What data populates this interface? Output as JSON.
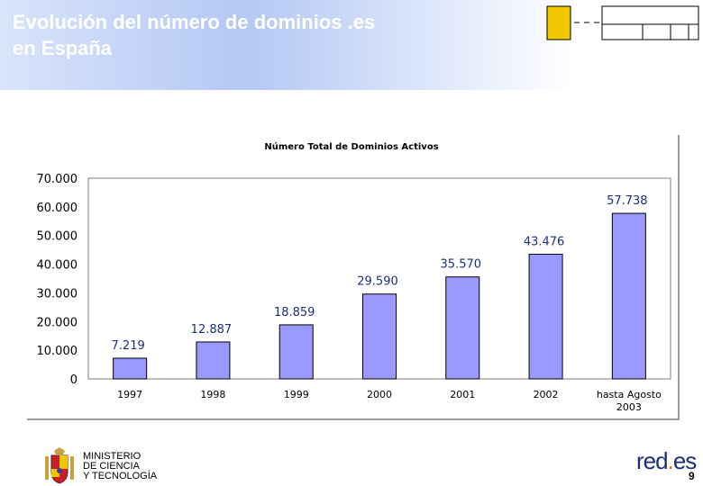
{
  "slide": {
    "title_line1": "Evolución del número de dominios .es",
    "title_line2": "en España",
    "page_number": "9"
  },
  "footer": {
    "ministry_lines": [
      "MINISTERIO",
      "DE CIENCIA",
      "Y TECNOLOGÍA"
    ],
    "brand_text": "red",
    "brand_accent": "es"
  },
  "chart_data": {
    "type": "bar",
    "title": "Número Total de Dominios Activos",
    "categories": [
      "1997",
      "1998",
      "1999",
      "2000",
      "2001",
      "2002",
      "hasta Agosto 2003"
    ],
    "category_lines": [
      [
        "1997"
      ],
      [
        "1998"
      ],
      [
        "1999"
      ],
      [
        "2000"
      ],
      [
        "2001"
      ],
      [
        "2002"
      ],
      [
        "hasta Agosto",
        "2003"
      ]
    ],
    "values": [
      7219,
      12887,
      18859,
      29590,
      35570,
      43476,
      57738
    ],
    "value_labels": [
      "7.219",
      "12.887",
      "18.859",
      "29.590",
      "35.570",
      "43.476",
      "57.738"
    ],
    "yticks": [
      0,
      10000,
      20000,
      30000,
      40000,
      50000,
      60000,
      70000
    ],
    "ytick_labels": [
      "0",
      "10.000",
      "20.000",
      "30.000",
      "40.000",
      "50.000",
      "60.000",
      "70.000"
    ],
    "ylim": [
      0,
      70000
    ],
    "xlabel": "",
    "ylabel": "",
    "grid": false,
    "legend": "none",
    "bar_color": "#9999ff",
    "label_color": "#1c2f7a"
  }
}
